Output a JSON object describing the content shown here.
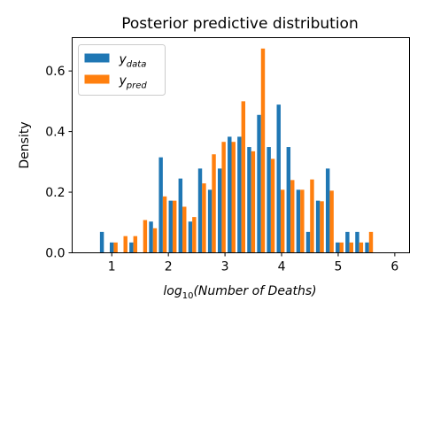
{
  "chart_data": {
    "type": "bar",
    "title": "Posterior predictive distribution",
    "xlabel": {
      "base": "log",
      "sub": "10",
      "rest": "(Number of Deaths)"
    },
    "ylabel": "Density",
    "xlim": [
      0.3,
      6.26
    ],
    "ylim": [
      0,
      0.71
    ],
    "x_ticks": [
      "1",
      "2",
      "3",
      "4",
      "5",
      "6"
    ],
    "y_ticks": [
      "0.0",
      "0.2",
      "0.4",
      "0.6"
    ],
    "legend": {
      "placement": "upper-left",
      "entries": [
        {
          "base": "y",
          "sub": "data",
          "color": "#1f77b4"
        },
        {
          "base": "y",
          "sub": "pred",
          "color": "#ff7f0e"
        }
      ]
    },
    "grid": false,
    "bin_start": 0.6,
    "bin_width": 0.1735,
    "series": [
      {
        "color": "#1f77b4",
        "values": [
          0,
          0.069,
          0.034,
          0,
          0.034,
          0,
          0.103,
          0.315,
          0.172,
          0.245,
          0.103,
          0.278,
          0.208,
          0.278,
          0.383,
          0.383,
          0.349,
          0.455,
          0.349,
          0.489,
          0.349,
          0.208,
          0.069,
          0.172,
          0.278,
          0.034,
          0.069,
          0.069,
          0.034
        ]
      },
      {
        "color": "#ff7f0e",
        "values": [
          0,
          0,
          0.034,
          0.055,
          0.055,
          0.108,
          0.081,
          0.186,
          0.172,
          0.152,
          0.118,
          0.229,
          0.325,
          0.366,
          0.366,
          0.5,
          0.335,
          0.674,
          0.31,
          0.208,
          0.24,
          0.208,
          0.242,
          0.17,
          0.205,
          0.034,
          0.034,
          0.034,
          0.069
        ]
      }
    ]
  }
}
